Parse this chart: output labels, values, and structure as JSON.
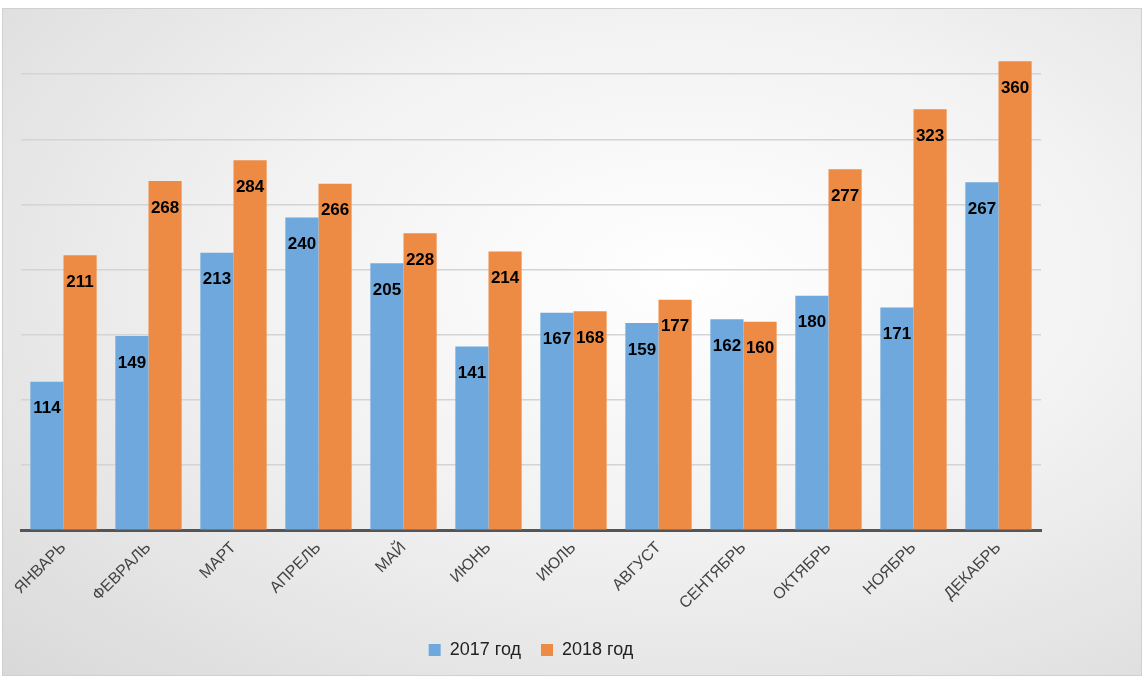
{
  "chart_data": {
    "type": "bar",
    "categories": [
      "ЯНВАРЬ",
      "ФЕВРАЛЬ",
      "МАРТ",
      "АПРЕЛЬ",
      "МАЙ",
      "ИЮНЬ",
      "ИЮЛЬ",
      "АВГУСТ",
      "СЕНТЯБРЬ",
      "ОКТЯБРЬ",
      "НОЯБРЬ",
      "ДЕКАБРЬ"
    ],
    "series": [
      {
        "name": "2017 год",
        "color": "#6fa8dc",
        "values": [
          114,
          149,
          213,
          240,
          205,
          141,
          167,
          159,
          162,
          180,
          171,
          267
        ]
      },
      {
        "name": "2018 год",
        "color": "#ed8b45",
        "values": [
          211,
          268,
          284,
          266,
          228,
          214,
          168,
          177,
          160,
          277,
          323,
          360
        ]
      }
    ],
    "ylim": [
      0,
      400
    ],
    "yticks": [
      {
        "value": 0,
        "label": null
      },
      {
        "value": 50,
        "label": null
      },
      {
        "value": 100,
        "label": null
      },
      {
        "value": 150,
        "label": null
      },
      {
        "value": 200,
        "label": null
      },
      {
        "value": 250,
        "label": null
      },
      {
        "value": 300,
        "label": null
      },
      {
        "value": 350,
        "label": null
      }
    ],
    "tick_labels": "x",
    "grid": "y",
    "legend": "bottom",
    "data_labels": true
  }
}
